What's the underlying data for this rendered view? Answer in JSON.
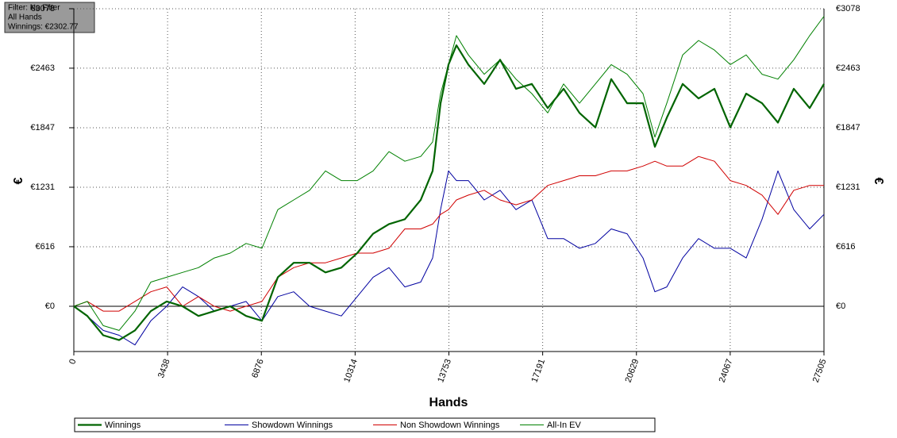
{
  "chart_data": {
    "type": "line",
    "info": [
      "Filter: No Filter",
      "All Hands",
      "Winnings: €2302.77"
    ],
    "xlabel": "Hands",
    "ylabel": "€",
    "y2label": "€",
    "xlim": [
      0,
      27505
    ],
    "xticks": [
      0,
      3438,
      6876,
      10314,
      13753,
      17191,
      20629,
      24067,
      27505
    ],
    "ylim": [
      -468,
      3078
    ],
    "yticks": [
      {
        "value": 0,
        "label": "€0"
      },
      {
        "value": 616,
        "label": "€616"
      },
      {
        "value": 1231,
        "label": "€1231"
      },
      {
        "value": 1847,
        "label": "€1847"
      },
      {
        "value": 2463,
        "label": "€2463"
      },
      {
        "value": 3078,
        "label": "€3078"
      }
    ],
    "grid": true,
    "legend": "bottom",
    "x": [
      0,
      495,
      1077,
      1659,
      2241,
      2823,
      3405,
      3988,
      4570,
      5152,
      5734,
      6316,
      6898,
      7480,
      8062,
      8644,
      9227,
      9809,
      10391,
      10973,
      11555,
      12137,
      12719,
      13156,
      13447,
      13738,
      14029,
      14466,
      15048,
      15630,
      16212,
      16794,
      17376,
      17958,
      18540,
      19123,
      19705,
      20287,
      20869,
      21306,
      21742,
      22324,
      22906,
      23489,
      24071,
      24653,
      25235,
      25817,
      26399,
      26981,
      27505
    ],
    "series": [
      {
        "name": "Winnings",
        "color": "#006400",
        "width": 2.2,
        "values": [
          0,
          -100,
          -300,
          -350,
          -250,
          -50,
          50,
          0,
          -100,
          -50,
          0,
          -100,
          -150,
          300,
          450,
          450,
          350,
          400,
          550,
          750,
          850,
          900,
          1100,
          1400,
          2100,
          2500,
          2700,
          2500,
          2300,
          2550,
          2250,
          2300,
          2050,
          2250,
          2000,
          1850,
          2350,
          2100,
          2100,
          1650,
          1950,
          2300,
          2150,
          2250,
          1850,
          2200,
          2100,
          1900,
          2250,
          2050,
          2300
        ]
      },
      {
        "name": "Showdown Winnings",
        "color": "#0000a0",
        "width": 1,
        "values": [
          0,
          -100,
          -250,
          -300,
          -400,
          -150,
          0,
          200,
          100,
          -50,
          0,
          50,
          -150,
          100,
          150,
          0,
          -50,
          -100,
          100,
          300,
          400,
          200,
          250,
          500,
          1000,
          1400,
          1300,
          1300,
          1100,
          1200,
          1000,
          1100,
          700,
          700,
          600,
          650,
          800,
          750,
          500,
          150,
          200,
          500,
          700,
          600,
          600,
          500,
          900,
          1400,
          1000,
          800,
          950
        ]
      },
      {
        "name": "Non Showdown Winnings",
        "color": "#d00000",
        "width": 1,
        "values": [
          0,
          50,
          -50,
          -50,
          50,
          150,
          200,
          0,
          100,
          0,
          -50,
          0,
          50,
          300,
          400,
          450,
          450,
          500,
          550,
          550,
          600,
          800,
          800,
          850,
          950,
          1000,
          1100,
          1150,
          1200,
          1100,
          1050,
          1100,
          1250,
          1300,
          1350,
          1350,
          1400,
          1400,
          1450,
          1500,
          1450,
          1450,
          1550,
          1500,
          1300,
          1250,
          1150,
          950,
          1200,
          1250,
          1250
        ]
      },
      {
        "name": "All-In EV",
        "color": "#008000",
        "width": 1,
        "values": [
          0,
          50,
          -200,
          -250,
          -50,
          250,
          300,
          350,
          400,
          500,
          550,
          650,
          600,
          1000,
          1100,
          1200,
          1400,
          1300,
          1300,
          1400,
          1600,
          1500,
          1550,
          1700,
          2200,
          2500,
          2800,
          2600,
          2400,
          2550,
          2350,
          2200,
          2000,
          2300,
          2100,
          2300,
          2500,
          2400,
          2200,
          1750,
          2100,
          2600,
          2750,
          2650,
          2500,
          2600,
          2400,
          2350,
          2550,
          2800,
          3000
        ]
      }
    ]
  }
}
